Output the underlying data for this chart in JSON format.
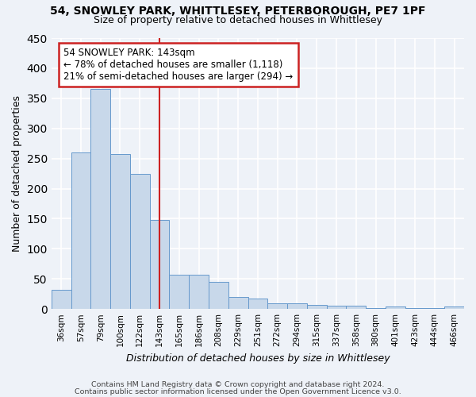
{
  "title_line1": "54, SNOWLEY PARK, WHITTLESEY, PETERBOROUGH, PE7 1PF",
  "title_line2": "Size of property relative to detached houses in Whittlesey",
  "xlabel": "Distribution of detached houses by size in Whittlesey",
  "ylabel": "Number of detached properties",
  "categories": [
    "36sqm",
    "57sqm",
    "79sqm",
    "100sqm",
    "122sqm",
    "143sqm",
    "165sqm",
    "186sqm",
    "208sqm",
    "229sqm",
    "251sqm",
    "272sqm",
    "294sqm",
    "315sqm",
    "337sqm",
    "358sqm",
    "380sqm",
    "401sqm",
    "423sqm",
    "444sqm",
    "466sqm"
  ],
  "values": [
    32,
    260,
    365,
    257,
    225,
    148,
    57,
    57,
    45,
    20,
    18,
    10,
    10,
    7,
    6,
    5,
    2,
    4,
    2,
    1,
    4
  ],
  "bar_color": "#c8d8ea",
  "bar_edge_color": "#6699cc",
  "highlight_index": 5,
  "highlight_line_color": "#cc2222",
  "annotation_text": "54 SNOWLEY PARK: 143sqm\n← 78% of detached houses are smaller (1,118)\n21% of semi-detached houses are larger (294) →",
  "annotation_box_color": "#ffffff",
  "annotation_box_edge": "#cc2222",
  "background_color": "#eef2f8",
  "grid_color": "#ffffff",
  "ylim": [
    0,
    450
  ],
  "footnote_line1": "Contains HM Land Registry data © Crown copyright and database right 2024.",
  "footnote_line2": "Contains public sector information licensed under the Open Government Licence v3.0."
}
